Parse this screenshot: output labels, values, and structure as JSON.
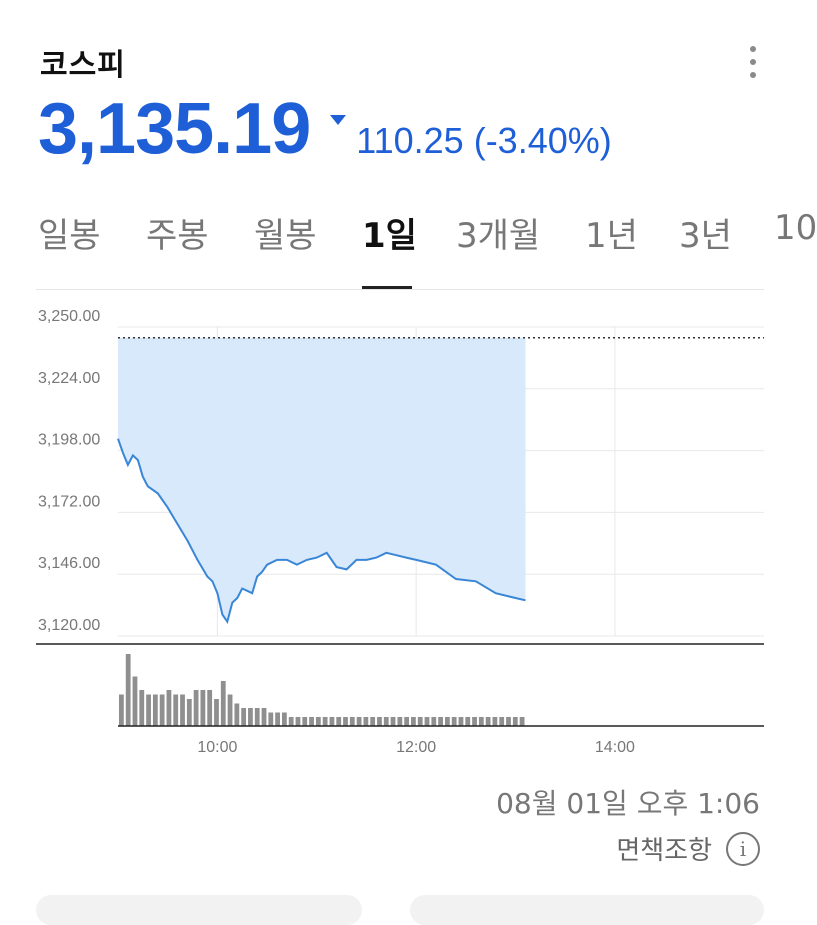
{
  "header": {
    "title": "코스피",
    "menu_icon": "more-vertical-icon"
  },
  "quote": {
    "price": "3,135.19",
    "change": "110.25 (-3.40%)",
    "direction": "down",
    "color": "#1e5fd8"
  },
  "tabs": [
    {
      "label": "일봉",
      "active": false
    },
    {
      "label": "주봉",
      "active": false
    },
    {
      "label": "월봉",
      "active": false
    },
    {
      "label": "1일",
      "active": true
    },
    {
      "label": "3개월",
      "active": false
    },
    {
      "label": "1년",
      "active": false
    },
    {
      "label": "3년",
      "active": false
    },
    {
      "label": "10",
      "active": false
    }
  ],
  "footer": {
    "timestamp": "08월 01일 오후 1:06",
    "disclaimer": "면책조항",
    "info_icon": "info-icon"
  },
  "chart_data": {
    "type": "line",
    "x_ticks": [
      "10:00",
      "12:00",
      "14:00"
    ],
    "y_ticks": [
      "3,250.00",
      "3,224.00",
      "3,198.00",
      "3,172.00",
      "3,146.00",
      "3,120.00"
    ],
    "ylim": [
      3120,
      3250
    ],
    "xlim_hours": [
      9,
      15.5
    ],
    "previous_close": 3245.44,
    "line_color": "#3a86d6",
    "fill_color": "#d8e9fb",
    "series": [
      {
        "x": [
          9.0,
          9.05,
          9.1,
          9.15,
          9.2,
          9.25,
          9.3,
          9.4,
          9.5,
          9.6,
          9.7,
          9.8,
          9.9,
          9.95,
          10.0,
          10.05,
          10.1,
          10.15,
          10.2,
          10.25,
          10.3,
          10.35,
          10.4,
          10.45,
          10.5,
          10.6,
          10.7,
          10.8,
          10.9,
          11.0,
          11.1,
          11.2,
          11.3,
          11.4,
          11.5,
          11.6,
          11.7,
          11.8,
          11.9,
          12.0,
          12.2,
          12.4,
          12.6,
          12.8,
          13.0,
          13.1
        ],
        "y": [
          3203,
          3197,
          3192,
          3196,
          3194,
          3187,
          3183,
          3180,
          3174,
          3167,
          3160,
          3152,
          3145,
          3143,
          3138,
          3129,
          3126,
          3134,
          3136,
          3140,
          3139,
          3138,
          3145,
          3147,
          3150,
          3152,
          3152,
          3150,
          3152,
          3153,
          3155,
          3149,
          3148,
          3152,
          3152,
          3153,
          3155,
          3154,
          3153,
          3152,
          3150,
          3144,
          3143,
          3138,
          3136,
          3135
        ]
      }
    ],
    "volume": [
      7,
      16,
      11,
      8,
      7,
      7,
      7,
      8,
      7,
      7,
      6,
      8,
      8,
      8,
      6,
      10,
      7,
      5,
      4,
      4,
      4,
      4,
      3,
      3,
      3,
      2,
      2,
      2,
      2,
      2,
      2,
      2,
      2,
      2,
      2,
      2,
      2,
      2,
      2,
      2,
      2,
      2,
      2,
      2,
      2,
      2,
      2,
      2,
      2,
      2,
      2,
      2,
      2,
      2,
      2,
      2,
      2,
      2,
      2,
      2
    ]
  }
}
